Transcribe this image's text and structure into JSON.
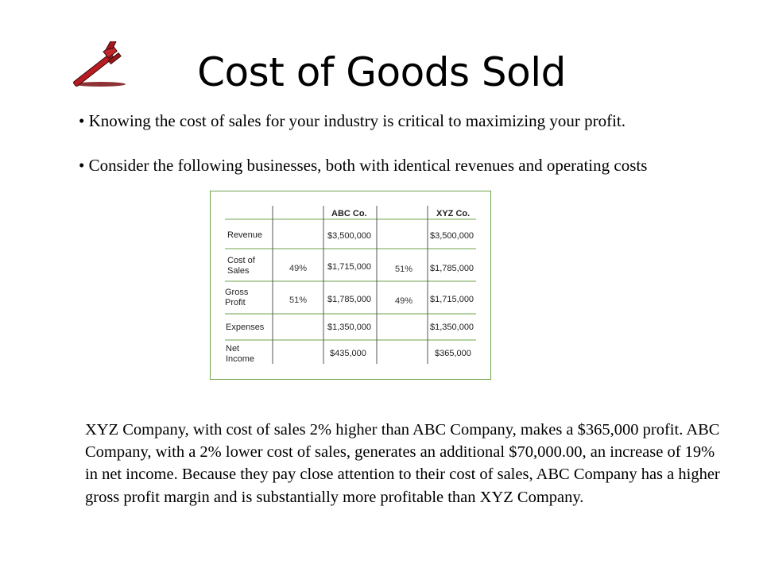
{
  "slide": {
    "title": "Cost of Goods Sold",
    "bullets": [
      "Knowing the cost of sales for your industry is critical to maximizing your profit.",
      "Consider the following businesses, both with identical revenues and operating costs"
    ],
    "paragraph": "XYZ Company, with cost of sales 2% higher than ABC Company, makes a $365,000 profit. ABC Company, with a 2% lower cost of sales, generates an additional $70,000.00, an increase of 19% in net income. Because they pay close attention to their cost of sales, ABC Company has a higher gross profit margin and is substantially more profitable than XYZ Company.",
    "logo_icon": "pipe-wrench-icon",
    "accent_color": "#6ea34a"
  },
  "table": {
    "headers": {
      "abc": "ABC Co.",
      "xyz": "XYZ Co."
    },
    "rows": [
      {
        "label": "Revenue",
        "abc_pct": "",
        "abc_val": "$3,500,000",
        "xyz_pct": "",
        "xyz_val": "$3,500,000"
      },
      {
        "label": "Cost of Sales",
        "abc_pct": "49%",
        "abc_val": "$1,715,000",
        "xyz_pct": "51%",
        "xyz_val": "$1,785,000"
      },
      {
        "label": "Gross Profit",
        "abc_pct": "51%",
        "abc_val": "$1,785,000",
        "xyz_pct": "49%",
        "xyz_val": "$1,715,000"
      },
      {
        "label": "Expenses",
        "abc_pct": "",
        "abc_val": "$1,350,000",
        "xyz_pct": "",
        "xyz_val": "$1,350,000"
      },
      {
        "label": "Net Income",
        "abc_pct": "",
        "abc_val": "$435,000",
        "xyz_pct": "",
        "xyz_val": "$365,000"
      }
    ]
  }
}
